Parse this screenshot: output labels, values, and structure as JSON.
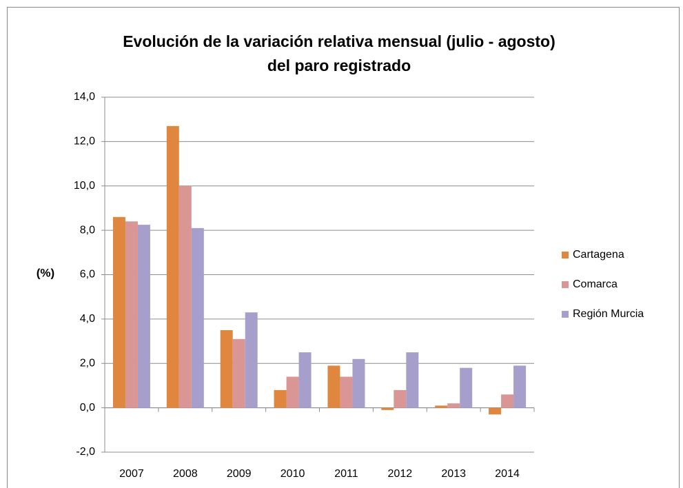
{
  "chart_data": {
    "type": "bar",
    "title": [
      "Evolución de la variación relativa mensual (julio - agosto)",
      "del paro registrado"
    ],
    "y_label": "(%)",
    "categories": [
      "2007",
      "2008",
      "2009",
      "2010",
      "2011",
      "2012",
      "2013",
      "2014"
    ],
    "series": [
      {
        "name": "Cartagena",
        "color": "#e0873f",
        "values": [
          8.6,
          12.7,
          3.5,
          0.8,
          1.9,
          -0.1,
          0.1,
          -0.3
        ]
      },
      {
        "name": "Comarca",
        "color": "#d99694",
        "values": [
          8.4,
          10.0,
          3.1,
          1.4,
          1.4,
          0.8,
          0.2,
          0.6
        ]
      },
      {
        "name": "Región Murcia",
        "color": "#a79fcb",
        "values": [
          8.25,
          8.1,
          4.3,
          2.5,
          2.2,
          2.5,
          1.8,
          1.9
        ]
      }
    ],
    "ylim": [
      -2,
      14
    ],
    "yticks": [
      {
        "value": -2,
        "label": "-2,0"
      },
      {
        "value": 0,
        "label": "0,0"
      },
      {
        "value": 2,
        "label": "2,0"
      },
      {
        "value": 4,
        "label": "4,0"
      },
      {
        "value": 6,
        "label": "6,0"
      },
      {
        "value": 8,
        "label": "8,0"
      },
      {
        "value": 10,
        "label": "10,0"
      },
      {
        "value": 12,
        "label": "12,0"
      },
      {
        "value": 14,
        "label": "14,0"
      }
    ],
    "grid": true,
    "legend": "right"
  }
}
